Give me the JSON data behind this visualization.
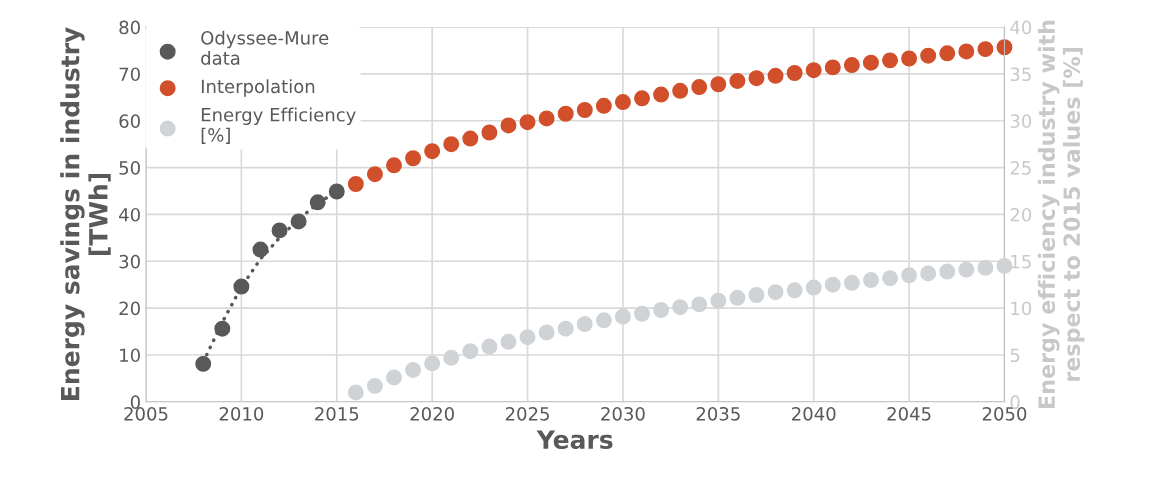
{
  "chart_data": {
    "type": "scatter",
    "xlabel": "Years",
    "ylabel": "Energy savings in industry\n[TWh]",
    "y2label": "Energy efficiency industry with\nrespect to 2015 values [%]",
    "series": [
      {
        "name": "Odyssee-Mure\ndata",
        "color": "#595959",
        "x": [
          2008,
          2009,
          2010,
          2011,
          2012,
          2013,
          2014,
          2015
        ],
        "values": [
          8.1,
          15.6,
          24.6,
          32.5,
          36.6,
          38.5,
          42.6,
          44.9
        ]
      },
      {
        "type": "line",
        "marker": "none",
        "line_style": "dotted",
        "color": "#595959",
        "x": [
          2008,
          2009,
          2010,
          2011,
          2012,
          2013,
          2014,
          2015
        ],
        "values": [
          8.5,
          17,
          24.5,
          30.5,
          35,
          39,
          42.3,
          45
        ]
      },
      {
        "name": "Interpolation",
        "color": "#d24f2b",
        "x": [
          2016,
          2017,
          2018,
          2019,
          2020,
          2021,
          2022,
          2023,
          2024,
          2025,
          2026,
          2027,
          2028,
          2029,
          2030,
          2031,
          2032,
          2033,
          2034,
          2035,
          2036,
          2037,
          2038,
          2039,
          2040,
          2041,
          2042,
          2043,
          2044,
          2045,
          2046,
          2047,
          2048,
          2049,
          2050
        ],
        "values": [
          46.5,
          48.6,
          50.5,
          52,
          53.5,
          55,
          56.2,
          57.5,
          59,
          59.7,
          60.5,
          61.5,
          62.3,
          63.2,
          64,
          64.8,
          65.6,
          66.4,
          67.2,
          67.8,
          68.5,
          69.1,
          69.6,
          70.2,
          70.8,
          71.4,
          71.9,
          72.4,
          72.9,
          73.3,
          73.9,
          74.4,
          74.8,
          75.3,
          75.7
        ]
      },
      {
        "name": "Energy Efficiency\n[%]",
        "color": "#d0d3d6",
        "axis": "y2",
        "x": [
          2016,
          2017,
          2018,
          2019,
          2020,
          2021,
          2022,
          2023,
          2024,
          2025,
          2026,
          2027,
          2028,
          2029,
          2030,
          2031,
          2032,
          2033,
          2034,
          2035,
          2036,
          2037,
          2038,
          2039,
          2040,
          2041,
          2042,
          2043,
          2044,
          2045,
          2046,
          2047,
          2048,
          2049,
          2050
        ],
        "values": [
          1,
          1.7,
          2.6,
          3.4,
          4.1,
          4.7,
          5.4,
          5.9,
          6.4,
          6.9,
          7.4,
          7.8,
          8.3,
          8.7,
          9.1,
          9.4,
          9.8,
          10.1,
          10.4,
          10.8,
          11.1,
          11.4,
          11.7,
          11.9,
          12.2,
          12.5,
          12.7,
          13.0,
          13.2,
          13.5,
          13.7,
          13.9,
          14.1,
          14.3,
          14.5
        ]
      }
    ],
    "xlim": [
      2005,
      2050
    ],
    "xticks": [
      2005,
      2010,
      2015,
      2020,
      2025,
      2030,
      2035,
      2040,
      2045,
      2050
    ],
    "ylim": [
      0,
      80
    ],
    "yticks": [
      0,
      10,
      20,
      30,
      40,
      50,
      60,
      70,
      80
    ],
    "y2lim": [
      0,
      40
    ],
    "y2ticks": [
      0,
      5,
      10,
      15,
      20,
      25,
      30,
      35,
      40
    ],
    "grid": true,
    "legend": "top left",
    "marker": "circle"
  }
}
